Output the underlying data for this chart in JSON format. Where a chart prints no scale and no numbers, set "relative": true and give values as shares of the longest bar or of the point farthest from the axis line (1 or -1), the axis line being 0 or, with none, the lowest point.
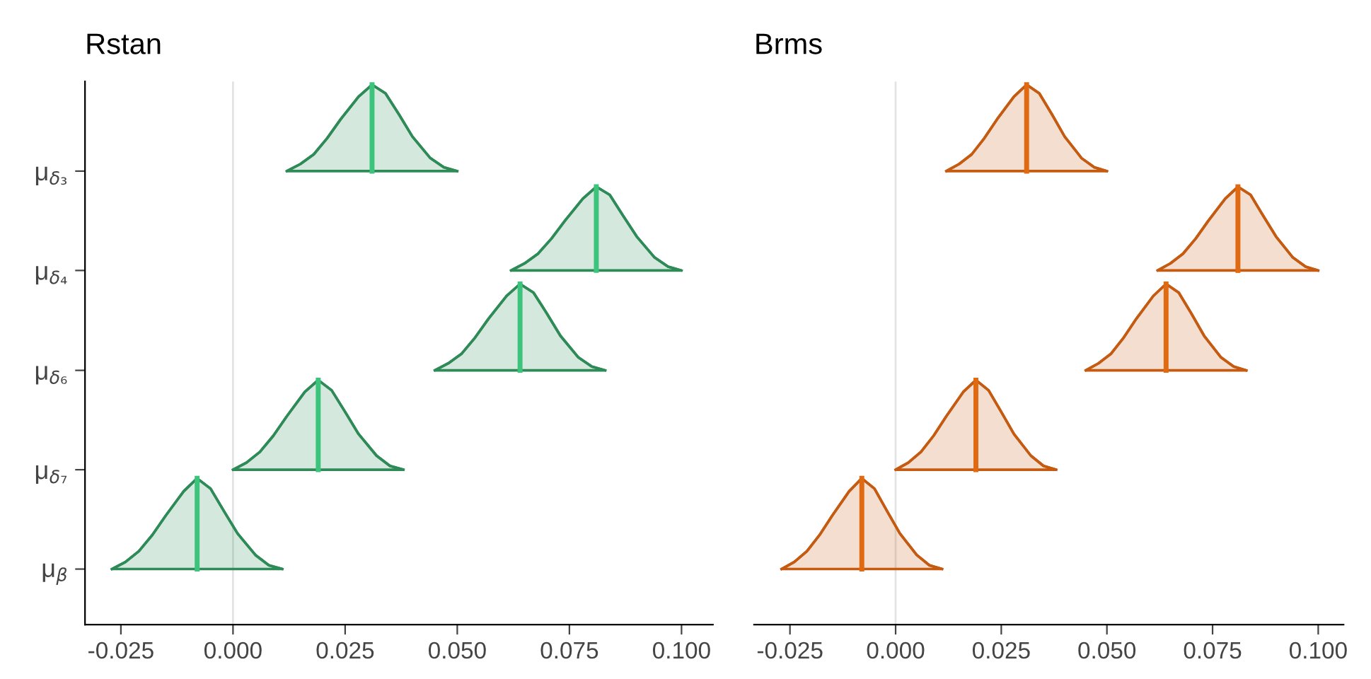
{
  "chart_data": [
    {
      "type": "area",
      "title": "Rstan",
      "relative": true,
      "xlim": [
        -0.033,
        0.107
      ],
      "xticks": [
        {
          "value": -0.025,
          "label": "-0.025"
        },
        {
          "value": 0,
          "label": "0.000"
        },
        {
          "value": 0.025,
          "label": "0.025"
        },
        {
          "value": 0.05,
          "label": "0.050"
        },
        {
          "value": 0.075,
          "label": "0.075"
        },
        {
          "value": 0.1,
          "label": "0.100"
        }
      ],
      "grid": false,
      "ref_lines": [
        {
          "axis": "x",
          "value": 0,
          "color": "#e3e3e3"
        }
      ],
      "annotations": [
        "μ$_{δ₃}$",
        "μ$_{δ₄}$",
        "μ$_{δ₆}$",
        "μ$_{δ₇}$",
        "μ$_{β}$"
      ],
      "series": [
        {
          "color": "#2e8b57",
          "x": [
            0.012,
            0.015,
            0.018,
            0.021,
            0.024,
            0.028,
            0.031,
            0.034,
            0.037,
            0.04,
            0.044,
            0.047,
            0.05
          ],
          "values": [
            0.84,
            0.853,
            0.871,
            0.901,
            0.936,
            0.978,
            1.0,
            0.984,
            0.945,
            0.904,
            0.864,
            0.847,
            0.84
          ]
        },
        {
          "color": "#2e8b57",
          "x": [
            0.062,
            0.065,
            0.068,
            0.071,
            0.074,
            0.078,
            0.081,
            0.084,
            0.087,
            0.09,
            0.094,
            0.097,
            0.1
          ],
          "values": [
            0.656,
            0.669,
            0.687,
            0.715,
            0.748,
            0.789,
            0.811,
            0.796,
            0.757,
            0.719,
            0.68,
            0.663,
            0.656
          ]
        },
        {
          "color": "#2e8b57",
          "x": [
            0.045,
            0.048,
            0.051,
            0.054,
            0.057,
            0.061,
            0.064,
            0.067,
            0.07,
            0.073,
            0.077,
            0.08,
            0.083
          ],
          "values": [
            0.471,
            0.484,
            0.502,
            0.532,
            0.567,
            0.609,
            0.631,
            0.615,
            0.576,
            0.535,
            0.495,
            0.478,
            0.471
          ]
        },
        {
          "color": "#2e8b57",
          "x": [
            0.0,
            0.003,
            0.006,
            0.009,
            0.012,
            0.016,
            0.019,
            0.022,
            0.025,
            0.028,
            0.032,
            0.035,
            0.038
          ],
          "values": [
            0.287,
            0.3,
            0.32,
            0.35,
            0.386,
            0.431,
            0.453,
            0.434,
            0.394,
            0.353,
            0.313,
            0.294,
            0.287
          ]
        },
        {
          "color": "#2e8b57",
          "x": [
            -0.027,
            -0.024,
            -0.021,
            -0.018,
            -0.015,
            -0.011,
            -0.008,
            -0.005,
            -0.002,
            0.001,
            0.005,
            0.008,
            0.011
          ],
          "values": [
            0.103,
            0.116,
            0.136,
            0.166,
            0.202,
            0.247,
            0.271,
            0.252,
            0.21,
            0.169,
            0.129,
            0.11,
            0.103
          ]
        },
        {
          "type": "line",
          "color": "#3cc47c",
          "x": [
            0.031,
            0.031
          ],
          "values": [
            0.84,
            1.0
          ]
        },
        {
          "type": "line",
          "color": "#3cc47c",
          "x": [
            0.081,
            0.081
          ],
          "values": [
            0.656,
            0.811
          ]
        },
        {
          "type": "line",
          "color": "#3cc47c",
          "x": [
            0.064,
            0.064
          ],
          "values": [
            0.471,
            0.631
          ]
        },
        {
          "type": "line",
          "color": "#3cc47c",
          "x": [
            0.019,
            0.019
          ],
          "values": [
            0.287,
            0.453
          ]
        },
        {
          "type": "line",
          "color": "#3cc47c",
          "x": [
            -0.008,
            -0.008
          ],
          "values": [
            0.103,
            0.271
          ]
        }
      ]
    },
    {
      "type": "area",
      "title": "Brms",
      "relative": true,
      "tick_labels": "x",
      "xlim": [
        -0.0335,
        0.106
      ],
      "xticks": [
        {
          "value": -0.025,
          "label": "-0.025"
        },
        {
          "value": 0,
          "label": "0.000"
        },
        {
          "value": 0.025,
          "label": "0.025"
        },
        {
          "value": 0.05,
          "label": "0.050"
        },
        {
          "value": 0.075,
          "label": "0.075"
        },
        {
          "value": 0.1,
          "label": "0.100"
        }
      ],
      "grid": false,
      "ref_lines": [
        {
          "axis": "x",
          "value": 0,
          "color": "#e3e3e3"
        }
      ],
      "series": [
        {
          "color": "#c55a11",
          "x": [
            0.012,
            0.015,
            0.018,
            0.021,
            0.024,
            0.028,
            0.031,
            0.034,
            0.037,
            0.04,
            0.044,
            0.047,
            0.05
          ],
          "values": [
            0.84,
            0.853,
            0.871,
            0.901,
            0.936,
            0.978,
            1.0,
            0.984,
            0.945,
            0.904,
            0.864,
            0.847,
            0.84
          ]
        },
        {
          "color": "#c55a11",
          "x": [
            0.062,
            0.065,
            0.068,
            0.071,
            0.074,
            0.078,
            0.081,
            0.084,
            0.087,
            0.09,
            0.094,
            0.097,
            0.1
          ],
          "values": [
            0.656,
            0.669,
            0.687,
            0.715,
            0.748,
            0.789,
            0.811,
            0.796,
            0.757,
            0.719,
            0.68,
            0.663,
            0.656
          ]
        },
        {
          "color": "#c55a11",
          "x": [
            0.045,
            0.048,
            0.051,
            0.054,
            0.057,
            0.061,
            0.064,
            0.067,
            0.07,
            0.073,
            0.077,
            0.08,
            0.083
          ],
          "values": [
            0.471,
            0.484,
            0.502,
            0.532,
            0.567,
            0.609,
            0.631,
            0.615,
            0.576,
            0.535,
            0.495,
            0.478,
            0.471
          ]
        },
        {
          "color": "#c55a11",
          "x": [
            0.0,
            0.003,
            0.006,
            0.009,
            0.012,
            0.016,
            0.019,
            0.022,
            0.025,
            0.028,
            0.032,
            0.035,
            0.038
          ],
          "values": [
            0.287,
            0.3,
            0.32,
            0.35,
            0.386,
            0.431,
            0.453,
            0.434,
            0.394,
            0.353,
            0.313,
            0.294,
            0.287
          ]
        },
        {
          "color": "#c55a11",
          "x": [
            -0.027,
            -0.024,
            -0.021,
            -0.018,
            -0.015,
            -0.011,
            -0.008,
            -0.005,
            -0.002,
            0.001,
            0.005,
            0.008,
            0.011
          ],
          "values": [
            0.103,
            0.116,
            0.136,
            0.166,
            0.202,
            0.247,
            0.271,
            0.252,
            0.21,
            0.169,
            0.129,
            0.11,
            0.103
          ]
        },
        {
          "type": "line",
          "color": "#e06a12",
          "x": [
            0.031,
            0.031
          ],
          "values": [
            0.84,
            1.0
          ]
        },
        {
          "type": "line",
          "color": "#e06a12",
          "x": [
            0.081,
            0.081
          ],
          "values": [
            0.656,
            0.811
          ]
        },
        {
          "type": "line",
          "color": "#e06a12",
          "x": [
            0.064,
            0.064
          ],
          "values": [
            0.471,
            0.631
          ]
        },
        {
          "type": "line",
          "color": "#e06a12",
          "x": [
            0.019,
            0.019
          ],
          "values": [
            0.287,
            0.453
          ]
        },
        {
          "type": "line",
          "color": "#e06a12",
          "x": [
            -0.008,
            -0.008
          ],
          "values": [
            0.103,
            0.271
          ]
        }
      ]
    }
  ]
}
